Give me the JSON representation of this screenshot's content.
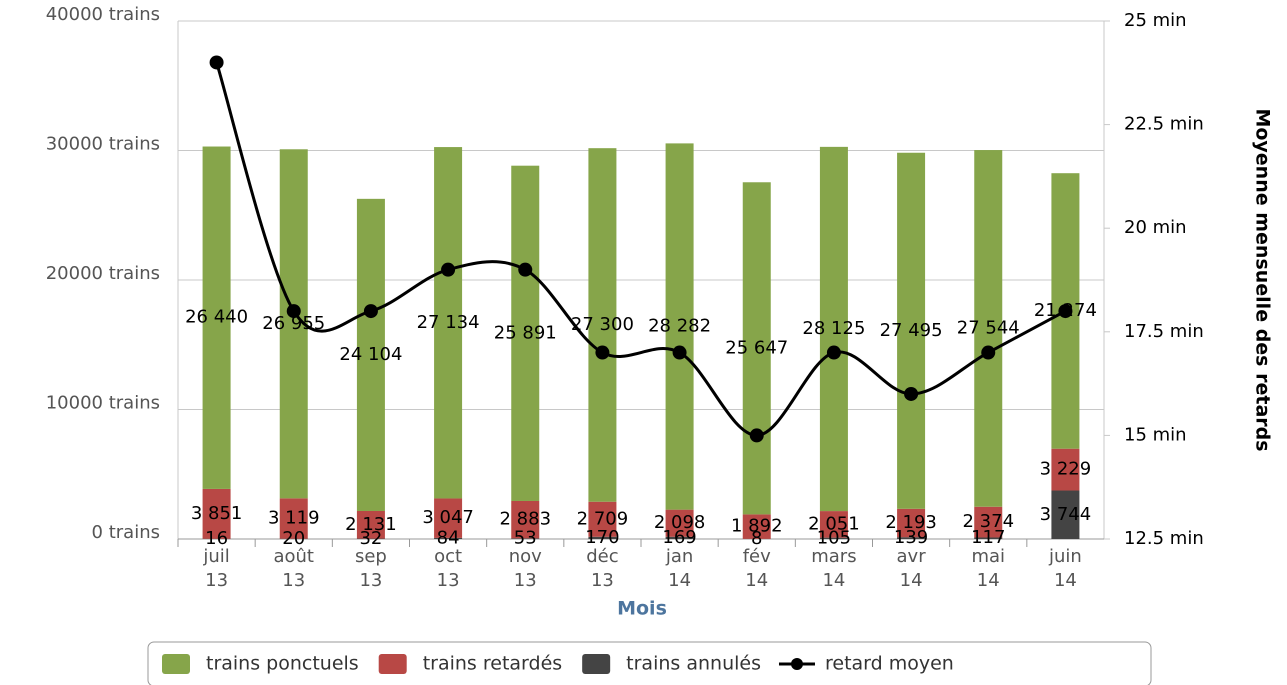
{
  "chart_data": {
    "type": "bar",
    "stacked": true,
    "xlabel": "Mois",
    "y2label": "Moyenne mensuelle des retards",
    "categories": [
      "juil 13",
      "août 13",
      "sep 13",
      "oct 13",
      "nov 13",
      "déc 13",
      "jan 14",
      "fév 14",
      "mars 14",
      "avr 14",
      "mai 14",
      "juin 14"
    ],
    "series": [
      {
        "name": "trains ponctuels",
        "color": "#86a54a",
        "type": "bar",
        "values": [
          26440,
          26955,
          24104,
          27134,
          25891,
          27300,
          28282,
          25647,
          28125,
          27495,
          27544,
          21274
        ],
        "value_labels": [
          "26 440",
          "26 955",
          "24 104",
          "27 134",
          "25 891",
          "27 300",
          "28 282",
          "25 647",
          "28 125",
          "27 495",
          "27 544",
          "21 274"
        ]
      },
      {
        "name": "trains retardés",
        "color": "#b84845",
        "type": "bar",
        "values": [
          3851,
          3119,
          2131,
          3047,
          2883,
          2709,
          2098,
          1892,
          2051,
          2193,
          2374,
          3229
        ],
        "value_labels": [
          "3 851",
          "3 119",
          "2 131",
          "3 047",
          "2 883",
          "2 709",
          "2 098",
          "1 892",
          "2 051",
          "2 193",
          "2 374",
          "3 229"
        ]
      },
      {
        "name": "trains annulés",
        "color": "#444444",
        "type": "bar",
        "values": [
          16,
          20,
          32,
          84,
          53,
          170,
          169,
          8,
          105,
          139,
          117,
          3744
        ],
        "value_labels": [
          "16",
          "20",
          "32",
          "84",
          "53",
          "170",
          "169",
          "8",
          "105",
          "139",
          "117",
          "3 744"
        ]
      },
      {
        "name": "retard moyen",
        "color": "#000000",
        "type": "line",
        "axis": "y2",
        "values": [
          24,
          18,
          18,
          19,
          19,
          17,
          17,
          15,
          17,
          16,
          17,
          18
        ]
      }
    ],
    "ylim": [
      0,
      40000
    ],
    "yticks": [
      {
        "value": 0,
        "label": "0 trains"
      },
      {
        "value": 10000,
        "label": "10000 trains"
      },
      {
        "value": 20000,
        "label": "20000 trains"
      },
      {
        "value": 30000,
        "label": "30000 trains"
      },
      {
        "value": 40000,
        "label": "40000 trains"
      }
    ],
    "y2lim": [
      12.5,
      25
    ],
    "y2ticks": [
      {
        "value": 12.5,
        "label": "12.5 min"
      },
      {
        "value": 15,
        "label": "15 min"
      },
      {
        "value": 17.5,
        "label": "17.5 min"
      },
      {
        "value": 20,
        "label": "20 min"
      },
      {
        "value": 22.5,
        "label": "22.5 min"
      },
      {
        "value": 25,
        "label": "25 min"
      }
    ],
    "grid": true,
    "legend": "bottom"
  }
}
